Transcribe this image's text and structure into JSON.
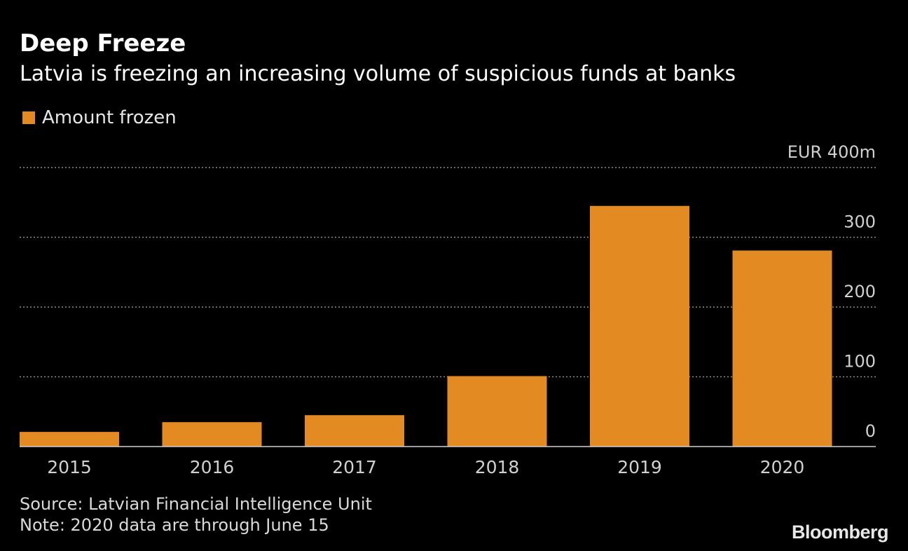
{
  "colors": {
    "background": "#000000",
    "bar": "#E38B22",
    "grid": "#8C8C8C",
    "text": "#FFFFFF",
    "axis_text": "#D0D0D0"
  },
  "footer": {
    "source": "Source: Latvian Financial Intelligence Unit",
    "note": "Note: 2020 data are through June 15"
  },
  "brand": "Bloomberg",
  "chart_data": {
    "type": "bar",
    "title": "Deep Freeze",
    "subtitle": "Latvia is freezing an increasing volume of suspicious funds at banks",
    "categories": [
      "2015",
      "2016",
      "2017",
      "2018",
      "2019",
      "2020"
    ],
    "series": [
      {
        "name": "Amount frozen",
        "values": [
          21,
          35,
          45,
          101,
          345,
          281
        ]
      }
    ],
    "ylim": [
      0,
      400
    ],
    "yticks": [
      0,
      100,
      200,
      300,
      400
    ],
    "ytick_labels": [
      "0",
      "100",
      "200",
      "300",
      "EUR 400m"
    ],
    "xlabel": "",
    "ylabel": "",
    "grid": true,
    "y_axis_side": "right",
    "legend_position": "top-left"
  }
}
